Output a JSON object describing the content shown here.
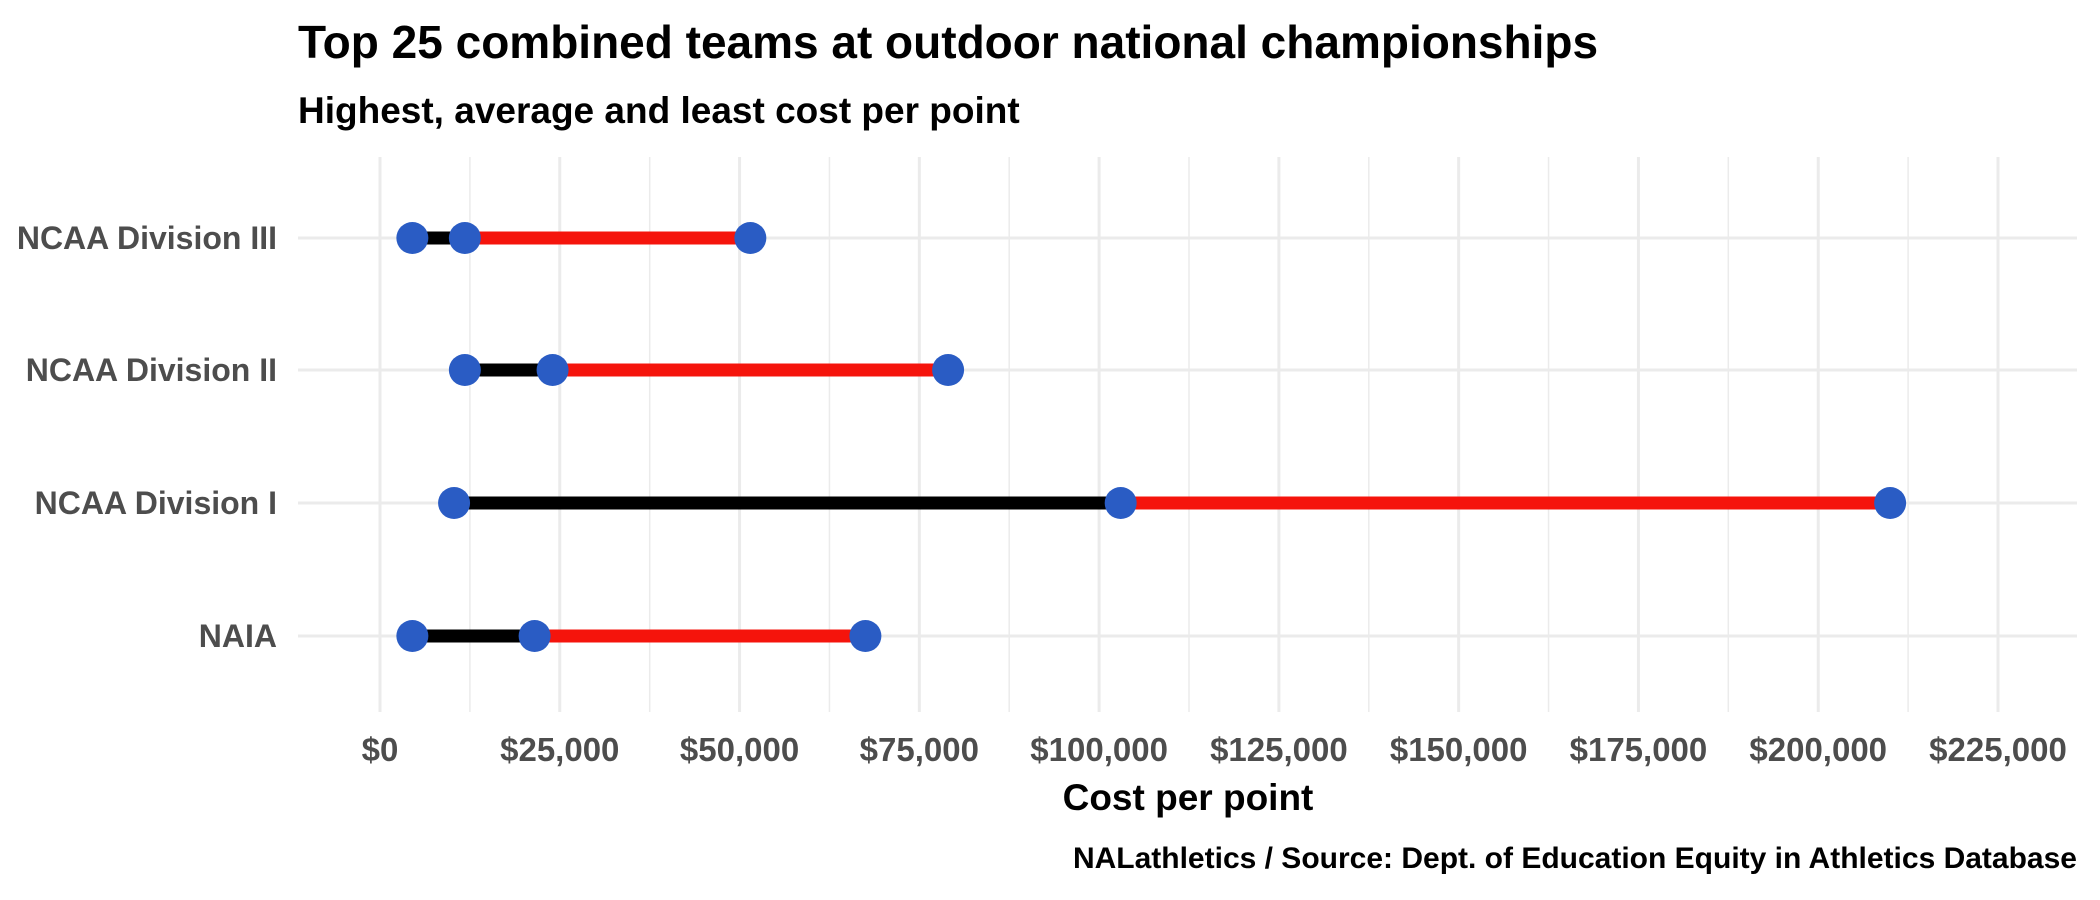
{
  "chart_data": {
    "type": "dumbbell",
    "title": "Top 25 combined teams at outdoor national championships",
    "subtitle": "Highest, average and least cost per point",
    "xlabel": "Cost per point",
    "ylabel": "",
    "caption": "NALathletics / Source: Dept. of Education Equity in Athletics Database",
    "xlim": [
      -12000,
      236000
    ],
    "x_ticks": [
      0,
      25000,
      50000,
      75000,
      100000,
      125000,
      150000,
      175000,
      200000,
      225000
    ],
    "x_tick_labels": [
      "$0",
      "$25,000",
      "$50,000",
      "$75,000",
      "$100,000",
      "$125,000",
      "$150,000",
      "$175,000",
      "$200,000",
      "$225,000"
    ],
    "categories": [
      "NCAA Division III",
      "NCAA Division II",
      "NCAA Division I",
      "NAIA"
    ],
    "series": [
      {
        "values": [
          4500,
          11800,
          10300,
          4500
        ]
      },
      {
        "values": [
          11800,
          24000,
          103000,
          21500
        ]
      },
      {
        "values": [
          51500,
          79000,
          210000,
          67500
        ]
      }
    ],
    "grid": true,
    "colors": {
      "low_to_avg_segment": "#000000",
      "avg_to_high_segment": "#f5140c",
      "points": "#2a5cc4",
      "grid": "#ebebeb",
      "tick_text": "#4d4d4d",
      "title_text": "#000000"
    }
  }
}
